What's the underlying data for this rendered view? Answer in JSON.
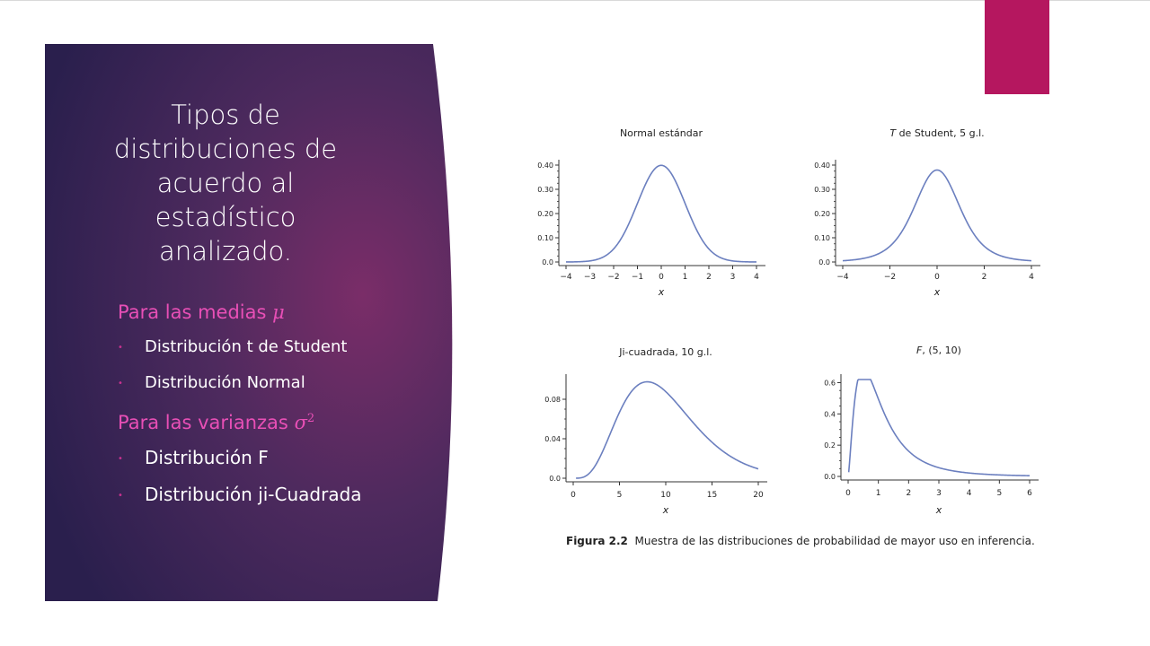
{
  "slide": {
    "title": "Tipos de distribuciones de acuerdo al estadístico analizado.",
    "section_means": {
      "label": "Para las medias",
      "symbol": "μ"
    },
    "means_items": [
      "Distribución t de Student",
      "Distribución Normal"
    ],
    "section_variances": {
      "label": "Para las varianzas",
      "symbol": "σ",
      "exponent": "2"
    },
    "variance_items": [
      "Distribución F",
      "Distribución ji-Cuadrada"
    ]
  },
  "colors": {
    "accent": "#b5175f",
    "subhead": "#e84fb6",
    "panel_dark": "#2a1f4d",
    "panel_mid": "#6b2a63",
    "curve": "#6b7fbf"
  },
  "figure": {
    "caption_label": "Figura 2.2",
    "caption_text": "Muestra de las distribuciones de probabilidad de mayor uso en inferencia."
  },
  "chart_data": [
    {
      "type": "line",
      "title": "Normal estándar",
      "xlabel": "x",
      "xlim": [
        -4,
        4
      ],
      "ylim": [
        0,
        0.4
      ],
      "xticks": [
        -4,
        -3,
        -2,
        -1,
        0,
        1,
        2,
        3,
        4
      ],
      "xtick_labels": [
        "−4",
        "−3",
        "−2",
        "−1",
        "0",
        "1",
        "2",
        "3",
        "4"
      ],
      "yticks": [
        0.0,
        0.1,
        0.2,
        0.3,
        0.4
      ],
      "ytick_labels": [
        "0.0",
        "0.10",
        "0.20",
        "0.30",
        "0.40"
      ],
      "dist": "normal"
    },
    {
      "type": "line",
      "title_italic": "T",
      "title": "de Student, 5 g.l.",
      "xlabel": "x",
      "xlim": [
        -4,
        4
      ],
      "ylim": [
        0,
        0.4
      ],
      "xticks": [
        -4,
        -2,
        0,
        2,
        4
      ],
      "xtick_labels": [
        "−4",
        "−2",
        "0",
        "2",
        "4"
      ],
      "yticks": [
        0.0,
        0.1,
        0.2,
        0.3,
        0.4
      ],
      "ytick_labels": [
        "0.0",
        "0.10",
        "0.20",
        "0.30",
        "0.40"
      ],
      "dist": "t",
      "df": 5
    },
    {
      "type": "line",
      "title": "Ji-cuadrada, 10 g.l.",
      "xlabel": "x",
      "xlim": [
        0,
        20
      ],
      "ylim": [
        0,
        0.1
      ],
      "xticks": [
        0,
        5,
        10,
        15,
        20
      ],
      "xtick_labels": [
        "0",
        "5",
        "10",
        "15",
        "20"
      ],
      "yticks": [
        0.0,
        0.04,
        0.08
      ],
      "ytick_labels": [
        "0.0",
        "0.04",
        "0.08"
      ],
      "dist": "chi2",
      "df": 10
    },
    {
      "type": "line",
      "title_italic": "F",
      "title": ", (5, 10)",
      "xlabel": "x",
      "xlim": [
        0,
        6
      ],
      "ylim": [
        0,
        0.6
      ],
      "xticks": [
        0,
        1,
        2,
        3,
        4,
        5,
        6
      ],
      "xtick_labels": [
        "0",
        "1",
        "2",
        "3",
        "4",
        "5",
        "6"
      ],
      "yticks": [
        0.0,
        0.2,
        0.4,
        0.6
      ],
      "ytick_labels": [
        "0.0",
        "0.2",
        "0.4",
        "0.6"
      ],
      "dist": "f",
      "df1": 5,
      "df2": 10
    }
  ]
}
